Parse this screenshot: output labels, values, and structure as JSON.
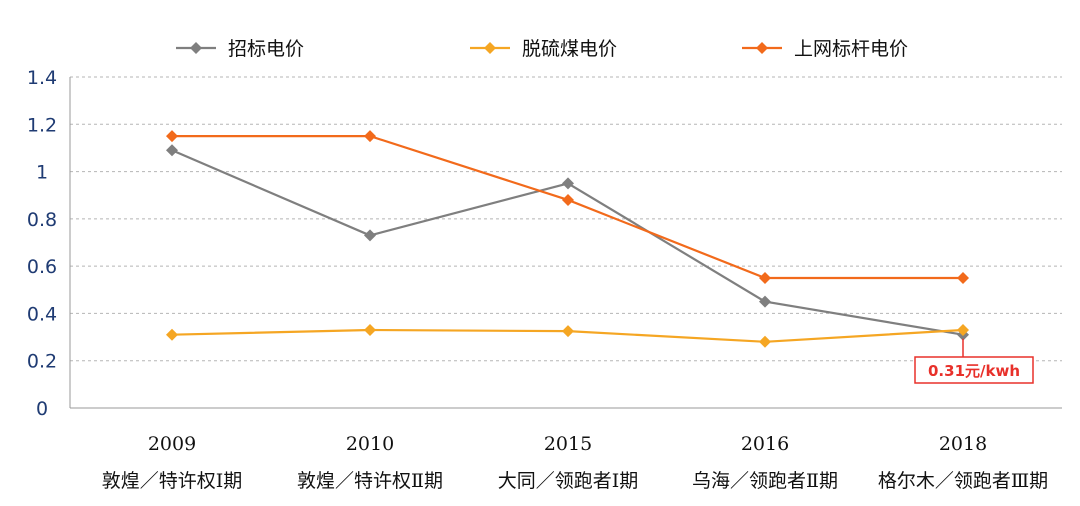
{
  "chart_data": {
    "type": "line",
    "title": "",
    "xlabel": "",
    "ylabel": "",
    "ylim": [
      0,
      1.4
    ],
    "yticks": [
      "0",
      "0.2",
      "0.4",
      "0.6",
      "0.8",
      "1",
      "1.2",
      "1.4"
    ],
    "grid": true,
    "legend_position": "top",
    "categories": [
      {
        "year": "2009",
        "site": "敦煌／特许权Ⅰ期"
      },
      {
        "year": "2010",
        "site": "敦煌／特许权Ⅱ期"
      },
      {
        "year": "2015",
        "site": "大同／领跑者Ⅰ期"
      },
      {
        "year": "2016",
        "site": "乌海／领跑者Ⅱ期"
      },
      {
        "year": "2018",
        "site": "格尔木／领跑者Ⅲ期"
      }
    ],
    "series": [
      {
        "name": "招标电价",
        "color": "#7f7f7f",
        "values": [
          1.09,
          0.73,
          0.95,
          0.45,
          0.31
        ]
      },
      {
        "name": "脱硫煤电价",
        "color": "#f5a623",
        "values": [
          0.31,
          0.33,
          0.325,
          0.28,
          0.33
        ]
      },
      {
        "name": "上网标杆电价",
        "color": "#f26a1b",
        "values": [
          1.15,
          1.15,
          0.88,
          0.55,
          0.55
        ]
      }
    ],
    "annotation": {
      "text": "0.31元/kwh",
      "category_index": 4,
      "value": 0.31,
      "color": "#e8302a"
    }
  }
}
